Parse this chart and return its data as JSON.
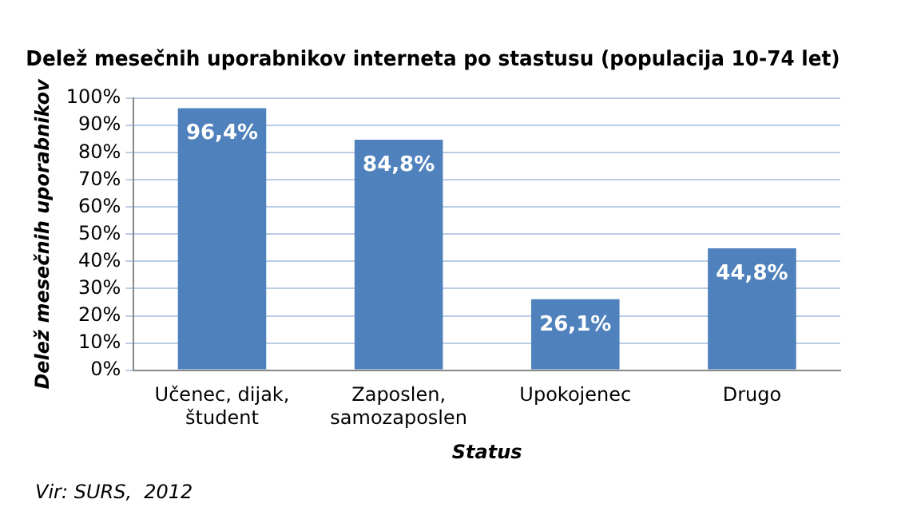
{
  "chart_data": {
    "type": "bar",
    "title": "Delež mesečnih uporabnikov interneta po stastusu (populacija 10-74 let)",
    "xlabel": "Status",
    "ylabel": "Delež mesečnih uporabnikov",
    "categories": [
      "Učenec, dijak,\nštudent",
      "Zaposlen,\nsamozaposlen",
      "Upokojenec",
      "Drugo"
    ],
    "values": [
      96.4,
      84.8,
      26.1,
      44.8
    ],
    "value_labels": [
      "96,4%",
      "84,8%",
      "26,1%",
      "44,8%"
    ],
    "color": "#4f81bd",
    "ylim": [
      0,
      100
    ],
    "yticks": [
      {
        "value": 0,
        "label": "0%"
      },
      {
        "value": 10,
        "label": "10%"
      },
      {
        "value": 20,
        "label": "20%"
      },
      {
        "value": 30,
        "label": "30%"
      },
      {
        "value": 40,
        "label": "40%"
      },
      {
        "value": 50,
        "label": "50%"
      },
      {
        "value": 60,
        "label": "60%"
      },
      {
        "value": 70,
        "label": "70%"
      },
      {
        "value": 80,
        "label": "80%"
      },
      {
        "value": 90,
        "label": "90%"
      },
      {
        "value": 100,
        "label": "100%"
      }
    ],
    "grid": "y",
    "legend": false,
    "annotations": [
      "Vir: SURS,  2012"
    ]
  }
}
